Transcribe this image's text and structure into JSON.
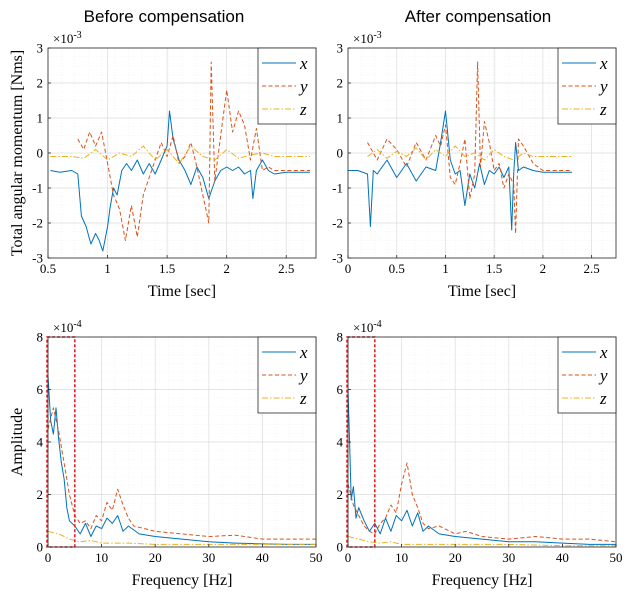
{
  "figure": {
    "column_titles": [
      "Before compensation",
      "After compensation"
    ]
  },
  "colors": {
    "x": "#0072BD",
    "y": "#D95319",
    "z": "#EDB120",
    "highlight": "#E8202A"
  },
  "chart_data": [
    {
      "id": "time_before",
      "type": "line",
      "title": "Before compensation",
      "xlabel": "Time [sec]",
      "ylabel": "Total angular momentum [Nms]",
      "exponent": "×10",
      "exponent_power": "-3",
      "xlim": [
        0.5,
        2.75
      ],
      "ylim": [
        -3,
        3
      ],
      "xticks": [
        0.5,
        1,
        1.5,
        2,
        2.5
      ],
      "xtick_labels": [
        "0.5",
        "1",
        "1.5",
        "2",
        "2.5"
      ],
      "yticks": [
        -3,
        -2,
        -1,
        0,
        1,
        2,
        3
      ],
      "ytick_labels": [
        "-3",
        "-2",
        "-1",
        "0",
        "1",
        "2",
        "3"
      ],
      "grid": true,
      "legend": "top-right",
      "series": [
        {
          "name": "x",
          "label": "x",
          "style": "solid",
          "color": "#0072BD",
          "x": [
            0.52,
            0.6,
            0.7,
            0.75,
            0.78,
            0.82,
            0.86,
            0.9,
            0.93,
            0.96,
            1.0,
            1.02,
            1.05,
            1.08,
            1.12,
            1.16,
            1.2,
            1.25,
            1.3,
            1.35,
            1.4,
            1.45,
            1.5,
            1.52,
            1.55,
            1.6,
            1.65,
            1.7,
            1.75,
            1.8,
            1.85,
            1.9,
            1.95,
            2.0,
            2.05,
            2.1,
            2.15,
            2.2,
            2.22,
            2.25,
            2.3,
            2.35,
            2.4,
            2.5,
            2.6,
            2.7
          ],
          "y": [
            -0.5,
            -0.55,
            -0.5,
            -0.6,
            -1.8,
            -2.1,
            -2.6,
            -2.3,
            -2.5,
            -2.8,
            -2.1,
            -1.6,
            -1.0,
            -1.2,
            -0.5,
            -0.3,
            -0.5,
            -0.2,
            -0.6,
            -0.3,
            -0.6,
            -0.2,
            0.2,
            1.2,
            0.4,
            -0.2,
            -0.5,
            -0.9,
            -0.4,
            -0.7,
            -1.3,
            -0.8,
            -0.5,
            -0.4,
            -0.5,
            -0.4,
            -0.6,
            -0.5,
            -1.3,
            -0.5,
            -0.2,
            -0.5,
            -0.6,
            -0.55,
            -0.55,
            -0.55
          ]
        },
        {
          "name": "y",
          "label": "y",
          "style": "dashed",
          "color": "#D95319",
          "x": [
            0.75,
            0.8,
            0.85,
            0.9,
            0.95,
            1.0,
            1.05,
            1.1,
            1.15,
            1.2,
            1.25,
            1.3,
            1.35,
            1.4,
            1.45,
            1.5,
            1.55,
            1.6,
            1.65,
            1.7,
            1.75,
            1.8,
            1.85,
            1.87,
            1.9,
            1.95,
            2.0,
            2.05,
            2.1,
            2.15,
            2.2,
            2.25,
            2.3,
            2.35,
            2.4,
            2.5,
            2.6,
            2.7
          ],
          "y": [
            0.4,
            0.1,
            0.6,
            0.2,
            0.6,
            -0.3,
            -1.2,
            -1.6,
            -2.5,
            -1.5,
            -2.4,
            -1.2,
            -0.7,
            -0.2,
            0.3,
            -0.1,
            0.5,
            -0.3,
            -0.1,
            0.3,
            -0.4,
            -1.2,
            -2.0,
            2.6,
            -0.8,
            0.5,
            1.8,
            0.6,
            1.2,
            0.8,
            -0.2,
            0.7,
            -0.5,
            -0.4,
            -0.5,
            -0.5,
            -0.5,
            -0.5
          ]
        },
        {
          "name": "z",
          "label": "z",
          "style": "dashdot",
          "color": "#EDB120",
          "x": [
            0.52,
            0.7,
            0.8,
            0.9,
            1.0,
            1.1,
            1.2,
            1.3,
            1.4,
            1.5,
            1.6,
            1.7,
            1.8,
            1.9,
            2.0,
            2.1,
            2.2,
            2.3,
            2.4,
            2.5,
            2.6,
            2.7
          ],
          "y": [
            -0.1,
            -0.1,
            -0.15,
            0.1,
            -0.2,
            0.0,
            -0.1,
            0.2,
            -0.2,
            0.1,
            -0.3,
            0.2,
            -0.1,
            -0.2,
            0.1,
            -0.15,
            -0.05,
            0.0,
            -0.1,
            -0.1,
            -0.1,
            -0.1
          ]
        }
      ]
    },
    {
      "id": "time_after",
      "type": "line",
      "title": "After compensation",
      "xlabel": "Time [sec]",
      "ylabel": "",
      "exponent": "×10",
      "exponent_power": "-3",
      "xlim": [
        0,
        2.75
      ],
      "ylim": [
        -3,
        3
      ],
      "xticks": [
        0,
        0.5,
        1,
        1.5,
        2,
        2.5
      ],
      "xtick_labels": [
        "0",
        "0.5",
        "1",
        "1.5",
        "2",
        "2.5"
      ],
      "yticks": [
        -3,
        -2,
        -1,
        0,
        1,
        2,
        3
      ],
      "ytick_labels": [
        "-3",
        "-2",
        "-1",
        "0",
        "1",
        "2",
        "3"
      ],
      "grid": true,
      "legend": "top-right",
      "series": [
        {
          "name": "x",
          "label": "x",
          "style": "solid",
          "color": "#0072BD",
          "x": [
            0.0,
            0.1,
            0.2,
            0.23,
            0.26,
            0.3,
            0.4,
            0.5,
            0.6,
            0.7,
            0.8,
            0.9,
            0.95,
            1.0,
            1.05,
            1.1,
            1.15,
            1.2,
            1.25,
            1.3,
            1.35,
            1.4,
            1.45,
            1.5,
            1.55,
            1.6,
            1.65,
            1.68,
            1.7,
            1.72,
            1.75,
            1.8,
            1.9,
            2.0,
            2.1,
            2.2,
            2.3
          ],
          "y": [
            -0.5,
            -0.5,
            -0.6,
            -2.1,
            -0.5,
            -0.6,
            -0.2,
            -0.7,
            -0.3,
            -0.8,
            -0.4,
            -0.5,
            0.3,
            1.2,
            -0.2,
            -0.6,
            -0.5,
            -1.5,
            -0.6,
            -1.0,
            -0.3,
            -0.9,
            -0.5,
            -0.6,
            -0.4,
            -0.7,
            -0.4,
            -2.2,
            -0.6,
            0.3,
            -0.5,
            -0.4,
            -0.5,
            -0.55,
            -0.55,
            -0.55,
            -0.55
          ]
        },
        {
          "name": "y",
          "label": "y",
          "style": "dashed",
          "color": "#D95319",
          "x": [
            0.2,
            0.3,
            0.4,
            0.5,
            0.6,
            0.7,
            0.8,
            0.9,
            0.95,
            1.0,
            1.05,
            1.1,
            1.15,
            1.2,
            1.25,
            1.3,
            1.33,
            1.36,
            1.4,
            1.45,
            1.5,
            1.55,
            1.6,
            1.65,
            1.7,
            1.72,
            1.75,
            1.8,
            1.9,
            2.0,
            2.1,
            2.2,
            2.3
          ],
          "y": [
            0.3,
            -0.2,
            0.4,
            0.1,
            -0.4,
            0.3,
            -0.2,
            0.5,
            0.2,
            0.8,
            -0.7,
            -0.9,
            -0.3,
            0.4,
            -1.3,
            -0.6,
            2.6,
            -0.4,
            0.9,
            0.3,
            -0.5,
            -0.3,
            -1.0,
            -0.6,
            -0.9,
            -2.3,
            0.4,
            0.2,
            -0.3,
            -0.5,
            -0.5,
            -0.5,
            -0.5
          ]
        },
        {
          "name": "z",
          "label": "z",
          "style": "dashdot",
          "color": "#EDB120",
          "x": [
            0.2,
            0.3,
            0.4,
            0.5,
            0.6,
            0.7,
            0.8,
            0.9,
            1.0,
            1.1,
            1.2,
            1.3,
            1.4,
            1.5,
            1.6,
            1.7,
            1.8,
            1.9,
            2.0,
            2.1,
            2.2,
            2.3
          ],
          "y": [
            -0.1,
            0.1,
            -0.15,
            0.05,
            -0.1,
            0.15,
            -0.2,
            0.1,
            -0.1,
            0.2,
            -0.1,
            0.0,
            -0.2,
            0.1,
            -0.1,
            -0.2,
            0.0,
            -0.1,
            -0.1,
            -0.1,
            -0.1,
            -0.1
          ]
        }
      ]
    },
    {
      "id": "freq_before",
      "type": "line",
      "xlabel": "Frequency [Hz]",
      "ylabel": "Amplitude",
      "exponent": "×10",
      "exponent_power": "-4",
      "xlim": [
        0,
        50
      ],
      "ylim": [
        0,
        8
      ],
      "xticks": [
        0,
        10,
        20,
        30,
        40,
        50
      ],
      "xtick_labels": [
        "0",
        "10",
        "20",
        "30",
        "40",
        "50"
      ],
      "yticks": [
        0,
        2,
        4,
        6,
        8
      ],
      "ytick_labels": [
        "0",
        "2",
        "4",
        "6",
        "8"
      ],
      "grid": true,
      "legend": "top-right",
      "highlight_box": [
        0,
        5,
        0,
        8
      ],
      "series": [
        {
          "name": "x",
          "label": "x",
          "style": "solid",
          "color": "#0072BD",
          "x": [
            0,
            0.5,
            1,
            1.5,
            2,
            2.5,
            3,
            3.5,
            4,
            5,
            6,
            7,
            8,
            9,
            10,
            11,
            12,
            13,
            14,
            15,
            17,
            20,
            25,
            30,
            35,
            40,
            45,
            50
          ],
          "y": [
            6.5,
            4.8,
            4.3,
            5.3,
            4.1,
            3.2,
            2.6,
            1.5,
            1.0,
            0.8,
            0.5,
            0.9,
            0.4,
            0.8,
            0.7,
            1.1,
            0.9,
            1.2,
            0.6,
            0.8,
            0.5,
            0.4,
            0.3,
            0.2,
            0.15,
            0.12,
            0.1,
            0.1
          ]
        },
        {
          "name": "y",
          "label": "y",
          "style": "dashed",
          "color": "#D95319",
          "x": [
            0,
            1,
            2,
            3,
            4,
            5,
            6,
            7,
            8,
            9,
            10,
            11,
            12,
            13,
            14,
            15,
            16,
            18,
            20,
            25,
            30,
            35,
            40,
            45,
            50
          ],
          "y": [
            4.5,
            5.3,
            4.4,
            3.2,
            2.0,
            1.2,
            0.9,
            1.0,
            0.7,
            1.2,
            1.0,
            1.7,
            1.4,
            2.2,
            1.6,
            1.1,
            0.8,
            0.7,
            0.6,
            0.5,
            0.4,
            0.45,
            0.3,
            0.3,
            0.3
          ]
        },
        {
          "name": "z",
          "label": "z",
          "style": "dashdot",
          "color": "#EDB120",
          "x": [
            0,
            2,
            4,
            6,
            8,
            10,
            15,
            20,
            30,
            40,
            50
          ],
          "y": [
            0.6,
            0.5,
            0.3,
            0.2,
            0.25,
            0.15,
            0.15,
            0.1,
            0.1,
            0.1,
            0.1
          ]
        }
      ]
    },
    {
      "id": "freq_after",
      "type": "line",
      "xlabel": "Frequency [Hz]",
      "ylabel": "",
      "exponent": "×10",
      "exponent_power": "-4",
      "xlim": [
        0,
        50
      ],
      "ylim": [
        0,
        8
      ],
      "xticks": [
        0,
        10,
        20,
        30,
        40,
        50
      ],
      "xtick_labels": [
        "0",
        "10",
        "20",
        "30",
        "40",
        "50"
      ],
      "yticks": [
        0,
        2,
        4,
        6,
        8
      ],
      "ytick_labels": [
        "0",
        "2",
        "4",
        "6",
        "8"
      ],
      "grid": true,
      "legend": "top-right",
      "highlight_box": [
        0,
        5,
        0,
        8
      ],
      "series": [
        {
          "name": "x",
          "label": "x",
          "style": "solid",
          "color": "#0072BD",
          "x": [
            0,
            0.3,
            0.6,
            1,
            1.5,
            2,
            3,
            4,
            5,
            6,
            7,
            8,
            9,
            10,
            11,
            12,
            13,
            14,
            15,
            17,
            20,
            25,
            30,
            35,
            40,
            45,
            50
          ],
          "y": [
            6.0,
            4.0,
            1.8,
            2.3,
            1.1,
            1.5,
            1.0,
            0.6,
            0.9,
            0.5,
            1.1,
            0.6,
            1.2,
            1.0,
            1.4,
            0.8,
            1.3,
            0.6,
            0.8,
            0.5,
            0.4,
            0.3,
            0.2,
            0.2,
            0.15,
            0.1,
            0.1
          ]
        },
        {
          "name": "y",
          "label": "y",
          "style": "dashed",
          "color": "#D95319",
          "x": [
            0,
            1,
            2,
            3,
            4,
            5,
            6,
            7,
            8,
            9,
            10,
            11,
            12,
            13,
            14,
            15,
            17,
            20,
            22,
            25,
            30,
            35,
            40,
            45,
            50
          ],
          "y": [
            2.4,
            1.6,
            1.2,
            0.8,
            0.6,
            0.5,
            0.9,
            1.1,
            1.6,
            1.3,
            2.4,
            3.2,
            2.0,
            1.5,
            0.9,
            0.7,
            0.8,
            0.5,
            0.6,
            0.4,
            0.3,
            0.4,
            0.3,
            0.3,
            0.2
          ]
        },
        {
          "name": "z",
          "label": "z",
          "style": "dashdot",
          "color": "#EDB120",
          "x": [
            0,
            2,
            4,
            6,
            8,
            10,
            15,
            20,
            30,
            40,
            50
          ],
          "y": [
            0.4,
            0.3,
            0.2,
            0.15,
            0.2,
            0.1,
            0.1,
            0.1,
            0.1,
            0.05,
            0.05
          ]
        }
      ]
    }
  ]
}
